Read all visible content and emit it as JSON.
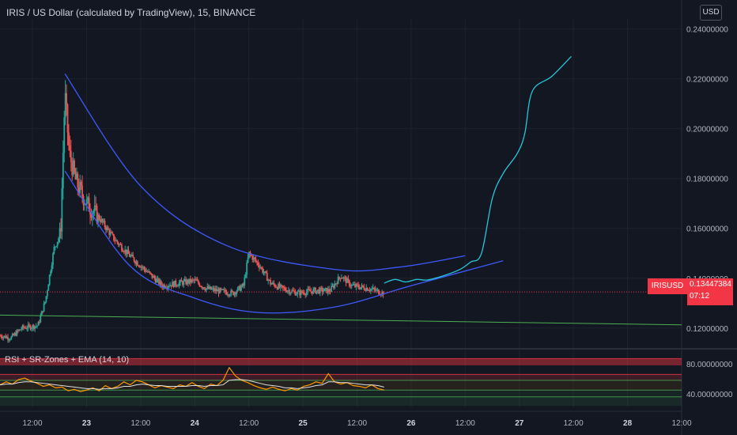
{
  "title": "IRIS / US Dollar (calculated by TradingView), 15, BINANCE",
  "currency_button": "USD",
  "symbol_badge": "IRISUSD",
  "last_price": "0.13447384",
  "countdown": "07:12",
  "rsi_legend": "RSI + SR-Zones + EMA (14, 10)",
  "colors": {
    "background": "#131722",
    "up": "#26a69a",
    "down": "#ef5350",
    "pattern_lines": "#3d5afe",
    "projection": "#26c6da",
    "support": "#4caf50",
    "rsi": "#ff9800",
    "ema": "#e0e0e0",
    "sr_zone": "#f23645"
  },
  "chart_data": [
    {
      "type": "candlestick",
      "title": "IRIS / US Dollar (calculated by TradingView), 15, BINANCE",
      "y_axis": {
        "ticks": [
          "0.24000000",
          "0.22000000",
          "0.20000000",
          "0.18000000",
          "0.16000000",
          "0.14000000",
          "0.12000000"
        ],
        "range": [
          0.112,
          0.244
        ]
      },
      "x_axis": {
        "ticks": [
          {
            "label": "12:00",
            "day": false
          },
          {
            "label": "23",
            "day": true
          },
          {
            "label": "12:00",
            "day": false
          },
          {
            "label": "24",
            "day": true
          },
          {
            "label": "12:00",
            "day": false
          },
          {
            "label": "25",
            "day": true
          },
          {
            "label": "12:00",
            "day": false
          },
          {
            "label": "26",
            "day": true
          },
          {
            "label": "12:00",
            "day": false
          },
          {
            "label": "27",
            "day": true
          },
          {
            "label": "12:00",
            "day": false
          },
          {
            "label": "28",
            "day": true
          },
          {
            "label": "12:00",
            "day": false
          }
        ],
        "range_days": [
          22.2,
          28.5
        ]
      },
      "price_path": [
        [
          22.2,
          0.117
        ],
        [
          22.3,
          0.116
        ],
        [
          22.4,
          0.12
        ],
        [
          22.55,
          0.121
        ],
        [
          22.62,
          0.131
        ],
        [
          22.7,
          0.152
        ],
        [
          22.76,
          0.158
        ],
        [
          22.8,
          0.214
        ],
        [
          22.84,
          0.19
        ],
        [
          22.9,
          0.179
        ],
        [
          23.0,
          0.17
        ],
        [
          23.12,
          0.164
        ],
        [
          23.25,
          0.156
        ],
        [
          23.4,
          0.149
        ],
        [
          23.55,
          0.143
        ],
        [
          23.7,
          0.137
        ],
        [
          23.85,
          0.138
        ],
        [
          24.0,
          0.139
        ],
        [
          24.1,
          0.136
        ],
        [
          24.2,
          0.135
        ],
        [
          24.35,
          0.134
        ],
        [
          24.45,
          0.137
        ],
        [
          24.5,
          0.15
        ],
        [
          24.6,
          0.145
        ],
        [
          24.7,
          0.138
        ],
        [
          24.8,
          0.136
        ],
        [
          24.95,
          0.134
        ],
        [
          25.1,
          0.135
        ],
        [
          25.25,
          0.135
        ],
        [
          25.35,
          0.141
        ],
        [
          25.45,
          0.137
        ],
        [
          25.6,
          0.136
        ],
        [
          25.75,
          0.134
        ]
      ],
      "support_line": [
        [
          22.2,
          0.1252
        ],
        [
          28.5,
          0.1213
        ]
      ],
      "bowl_upper": [
        [
          22.8,
          0.222
        ],
        [
          23.5,
          0.177
        ],
        [
          24.3,
          0.153
        ],
        [
          25.3,
          0.1435
        ],
        [
          25.9,
          0.1445
        ],
        [
          26.5,
          0.149
        ]
      ],
      "bowl_lower": [
        [
          22.8,
          0.183
        ],
        [
          23.4,
          0.145
        ],
        [
          24.0,
          0.132
        ],
        [
          24.6,
          0.1262
        ],
        [
          25.3,
          0.1285
        ],
        [
          26.0,
          0.137
        ],
        [
          26.85,
          0.147
        ]
      ],
      "projection": [
        [
          25.75,
          0.138
        ],
        [
          25.85,
          0.1395
        ],
        [
          25.95,
          0.1385
        ],
        [
          26.05,
          0.1395
        ],
        [
          26.15,
          0.1393
        ],
        [
          26.3,
          0.141
        ],
        [
          26.45,
          0.1435
        ],
        [
          26.55,
          0.1465
        ],
        [
          26.65,
          0.15
        ],
        [
          26.75,
          0.172
        ],
        [
          26.85,
          0.182
        ],
        [
          26.98,
          0.19
        ],
        [
          27.05,
          0.198
        ],
        [
          27.12,
          0.215
        ],
        [
          27.3,
          0.221
        ],
        [
          27.48,
          0.229
        ]
      ],
      "current_price": 0.13447384
    },
    {
      "type": "line",
      "title": "RSI + SR-Zones + EMA (14, 10)",
      "y_axis": {
        "ticks": [
          "80.00000000",
          "40.00000000"
        ],
        "range": [
          22,
          98
        ]
      },
      "sr_zones": [
        [
          78,
          87
        ],
        [
          58,
          66
        ],
        [
          45,
          58
        ],
        [
          36,
          45
        ],
        [
          24,
          36
        ]
      ],
      "series": [
        {
          "name": "RSI",
          "values": [
            52,
            56,
            53,
            59,
            61,
            57,
            54,
            50,
            52,
            48,
            49,
            44,
            46,
            43,
            45,
            48,
            44,
            51,
            47,
            50,
            56,
            52,
            58,
            56,
            52,
            48,
            51,
            49,
            47,
            52,
            50,
            55,
            50,
            47,
            53,
            51,
            58,
            75,
            64,
            58,
            55,
            51,
            48,
            46,
            49,
            46,
            44,
            47,
            45,
            50,
            52,
            56,
            54,
            67,
            56,
            53,
            55,
            51,
            50,
            48,
            52,
            47,
            45
          ]
        },
        {
          "name": "EMA",
          "values": [
            52,
            53,
            53,
            55,
            56,
            56,
            55,
            54,
            53,
            52,
            51,
            50,
            49,
            48,
            47,
            47,
            46,
            47,
            47,
            48,
            50,
            50,
            52,
            53,
            52,
            51,
            51,
            50,
            50,
            50,
            50,
            51,
            51,
            50,
            51,
            51,
            52,
            58,
            59,
            59,
            58,
            56,
            54,
            52,
            51,
            50,
            48,
            48,
            47,
            48,
            49,
            51,
            52,
            56,
            56,
            55,
            55,
            54,
            53,
            52,
            52,
            51,
            49
          ]
        }
      ]
    }
  ]
}
